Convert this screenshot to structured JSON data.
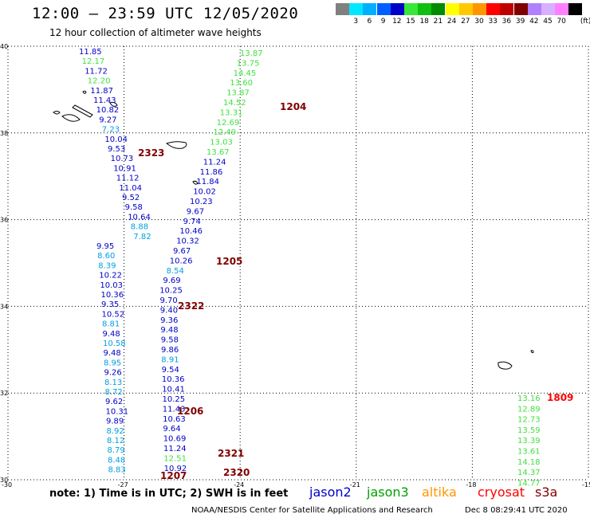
{
  "header": {
    "title": "12:00 – 23:59 UTC 12/05/2020",
    "subtitle": "12 hour collection of altimeter wave heights"
  },
  "color_scale": {
    "unit_label": "(ft)",
    "bins": [
      {
        "label": "",
        "color": "#808080"
      },
      {
        "label": "3",
        "color": "#00e8ff"
      },
      {
        "label": "6",
        "color": "#00b0ff"
      },
      {
        "label": "9",
        "color": "#0060ff"
      },
      {
        "label": "12",
        "color": "#0000c8"
      },
      {
        "label": "15",
        "color": "#38e838"
      },
      {
        "label": "18",
        "color": "#10c010"
      },
      {
        "label": "21",
        "color": "#008c00"
      },
      {
        "label": "24",
        "color": "#ffff00"
      },
      {
        "label": "27",
        "color": "#ffc800"
      },
      {
        "label": "30",
        "color": "#ff9600"
      },
      {
        "label": "33",
        "color": "#ff0000"
      },
      {
        "label": "36",
        "color": "#c00000"
      },
      {
        "label": "39",
        "color": "#800000"
      },
      {
        "label": "42",
        "color": "#b080ff"
      },
      {
        "label": "45",
        "color": "#d8b0ff"
      },
      {
        "label": "70",
        "color": "#ff80ff"
      },
      {
        "label": "",
        "color": "#000000"
      }
    ]
  },
  "axes": {
    "lat_labels": [
      "40",
      "38",
      "36",
      "34",
      "32",
      "30"
    ],
    "lon_labels": [
      "-30",
      "-27",
      "-24",
      "-21",
      "-18",
      "-15"
    ]
  },
  "palette": {
    "blue": "#0000c8",
    "cyan": "#00a0e0",
    "green": "#40e040",
    "darkred": "#800000",
    "red": "#ff0000"
  },
  "track_times": [
    {
      "label": "2323",
      "color": "#800000"
    },
    {
      "label": "1204",
      "color": "#800000"
    },
    {
      "label": "1205",
      "color": "#800000"
    },
    {
      "label": "2322",
      "color": "#800000"
    },
    {
      "label": "1206",
      "color": "#800000"
    },
    {
      "label": "2321",
      "color": "#800000"
    },
    {
      "label": "2320",
      "color": "#800000"
    },
    {
      "label": "1207",
      "color": "#800000"
    },
    {
      "label": "1809",
      "color": "#ff0000"
    }
  ],
  "track_west": [
    {
      "v": "11.85",
      "c": "blue"
    },
    {
      "v": "12.17",
      "c": "green"
    },
    {
      "v": "11.72",
      "c": "blue"
    },
    {
      "v": "12.20",
      "c": "green"
    },
    {
      "v": "11.87",
      "c": "blue"
    },
    {
      "v": "11.43",
      "c": "blue"
    },
    {
      "v": "10.82",
      "c": "blue"
    },
    {
      "v": "9.27",
      "c": "blue"
    },
    {
      "v": "7.23",
      "c": "cyan"
    },
    {
      "v": "10.04",
      "c": "blue"
    },
    {
      "v": "9.53",
      "c": "blue"
    },
    {
      "v": "10.73",
      "c": "blue"
    },
    {
      "v": "10.91",
      "c": "blue"
    },
    {
      "v": "11.12",
      "c": "blue"
    },
    {
      "v": "11.04",
      "c": "blue"
    },
    {
      "v": "9.52",
      "c": "blue"
    },
    {
      "v": "9.58",
      "c": "blue"
    },
    {
      "v": "10.64",
      "c": "blue"
    },
    {
      "v": "8.88",
      "c": "cyan"
    },
    {
      "v": "7.82",
      "c": "cyan"
    },
    {
      "v": "9.95",
      "c": "blue"
    },
    {
      "v": "8.60",
      "c": "cyan"
    },
    {
      "v": "8.39",
      "c": "cyan"
    },
    {
      "v": "10.22",
      "c": "blue"
    },
    {
      "v": "10.03",
      "c": "blue"
    },
    {
      "v": "10.36",
      "c": "blue"
    },
    {
      "v": "9.35",
      "c": "blue"
    },
    {
      "v": "10.52",
      "c": "blue"
    },
    {
      "v": "8.81",
      "c": "cyan"
    },
    {
      "v": "9.48",
      "c": "blue"
    },
    {
      "v": "10.58",
      "c": "cyan"
    },
    {
      "v": "9.48",
      "c": "blue"
    },
    {
      "v": "8.95",
      "c": "cyan"
    },
    {
      "v": "9.26",
      "c": "blue"
    },
    {
      "v": "8.13",
      "c": "cyan"
    },
    {
      "v": "8.72",
      "c": "cyan"
    },
    {
      "v": "9.62",
      "c": "blue"
    },
    {
      "v": "10.31",
      "c": "blue"
    },
    {
      "v": "9.89",
      "c": "blue"
    },
    {
      "v": "8.92",
      "c": "cyan"
    },
    {
      "v": "8.12",
      "c": "cyan"
    },
    {
      "v": "8.79",
      "c": "cyan"
    },
    {
      "v": "8.48",
      "c": "cyan"
    },
    {
      "v": "8.83",
      "c": "cyan"
    }
  ],
  "track_middle": [
    {
      "v": "13.87",
      "c": "green"
    },
    {
      "v": "13.75",
      "c": "green"
    },
    {
      "v": "14.45",
      "c": "green"
    },
    {
      "v": "13.60",
      "c": "green"
    },
    {
      "v": "13.87",
      "c": "green"
    },
    {
      "v": "14.52",
      "c": "green"
    },
    {
      "v": "13.31",
      "c": "green"
    },
    {
      "v": "12.69",
      "c": "green"
    },
    {
      "v": "12.49",
      "c": "green"
    },
    {
      "v": "13.03",
      "c": "green"
    },
    {
      "v": "13.67",
      "c": "green"
    },
    {
      "v": "11.24",
      "c": "blue"
    },
    {
      "v": "11.86",
      "c": "blue"
    },
    {
      "v": "11.84",
      "c": "blue"
    },
    {
      "v": "10.02",
      "c": "blue"
    },
    {
      "v": "10.23",
      "c": "blue"
    },
    {
      "v": "9.67",
      "c": "blue"
    },
    {
      "v": "9.74",
      "c": "blue"
    },
    {
      "v": "10.46",
      "c": "blue"
    },
    {
      "v": "10.32",
      "c": "blue"
    },
    {
      "v": "9.67",
      "c": "blue"
    },
    {
      "v": "10.26",
      "c": "blue"
    },
    {
      "v": "8.54",
      "c": "cyan"
    },
    {
      "v": "9.69",
      "c": "blue"
    },
    {
      "v": "10.25",
      "c": "blue"
    },
    {
      "v": "9.70",
      "c": "blue"
    },
    {
      "v": "9.40",
      "c": "blue"
    },
    {
      "v": "9.36",
      "c": "blue"
    },
    {
      "v": "9.48",
      "c": "blue"
    },
    {
      "v": "9.58",
      "c": "blue"
    },
    {
      "v": "9.86",
      "c": "blue"
    },
    {
      "v": "8.91",
      "c": "cyan"
    },
    {
      "v": "9.54",
      "c": "blue"
    },
    {
      "v": "10.36",
      "c": "blue"
    },
    {
      "v": "10.41",
      "c": "blue"
    },
    {
      "v": "10.25",
      "c": "blue"
    },
    {
      "v": "11.43",
      "c": "blue"
    },
    {
      "v": "10.63",
      "c": "blue"
    },
    {
      "v": "9.64",
      "c": "blue"
    },
    {
      "v": "10.69",
      "c": "blue"
    },
    {
      "v": "11.24",
      "c": "blue"
    },
    {
      "v": "12.51",
      "c": "green"
    },
    {
      "v": "10.92",
      "c": "blue"
    }
  ],
  "track_east": [
    {
      "v": "13.16",
      "c": "green"
    },
    {
      "v": "12.89",
      "c": "green"
    },
    {
      "v": "12.73",
      "c": "green"
    },
    {
      "v": "13.59",
      "c": "green"
    },
    {
      "v": "13.39",
      "c": "green"
    },
    {
      "v": "13.61",
      "c": "green"
    },
    {
      "v": "14.18",
      "c": "green"
    },
    {
      "v": "14.37",
      "c": "green"
    },
    {
      "v": "14.77",
      "c": "green"
    }
  ],
  "note": "note: 1) Time is in UTC; 2) SWH is in feet",
  "legend": [
    {
      "label": "jason2",
      "color": "#0000c8"
    },
    {
      "label": "jason3",
      "color": "#00a000"
    },
    {
      "label": "altika",
      "color": "#ff9600"
    },
    {
      "label": "cryosat",
      "color": "#ff0000"
    },
    {
      "label": "s3a",
      "color": "#800000"
    }
  ],
  "footer": {
    "agency": "NOAA/NESDIS Center for Satellite Applications and Research",
    "timestamp": "Dec  8 08:29:41 UTC 2020"
  }
}
